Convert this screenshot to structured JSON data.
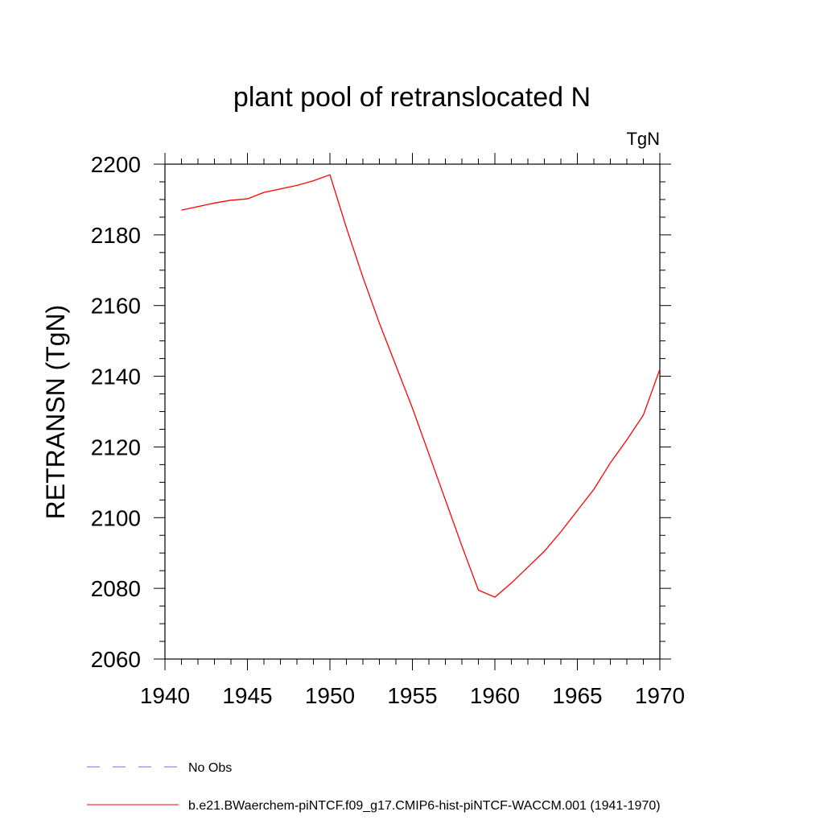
{
  "chart_data": {
    "type": "line",
    "title": "plant pool of retranslocated N",
    "units_label": "TgN",
    "xlabel": "",
    "ylabel": "RETRANSN  (TgN)",
    "xlim": [
      1940,
      1970
    ],
    "ylim": [
      2060,
      2200
    ],
    "x_ticks": [
      1940,
      1945,
      1950,
      1955,
      1960,
      1965,
      1970
    ],
    "y_ticks": [
      2060,
      2080,
      2100,
      2120,
      2140,
      2160,
      2180,
      2200
    ],
    "grid": false,
    "legend_position": "bottom-left",
    "series": [
      {
        "name": "b.e21.BWaerchem-piNTCF.f09_g17.CMIP6-hist-piNTCF-WACCM.001 (1941-1970)",
        "color": "#ff0000",
        "style": "solid",
        "x": [
          1941,
          1942,
          1943,
          1944,
          1945,
          1946,
          1947,
          1948,
          1949,
          1950,
          1951,
          1952,
          1953,
          1954,
          1955,
          1956,
          1957,
          1958,
          1959,
          1960,
          1961,
          1962,
          1963,
          1964,
          1965,
          1966,
          1967,
          1968,
          1969,
          1970
        ],
        "y": [
          2187,
          2188,
          2189,
          2189.8,
          2190.2,
          2192,
          2193,
          2194,
          2195.3,
          2197,
          2182,
          2168,
          2155,
          2143,
          2131,
          2118,
          2105,
          2092,
          2079.5,
          2077.5,
          2081.5,
          2086,
          2090.5,
          2096,
          2102,
          2108,
          2115.5,
          2122,
          2129,
          2142
        ]
      }
    ],
    "legend": [
      {
        "label": "No Obs",
        "color": "#7b68ee",
        "style": "dashed"
      },
      {
        "label": "b.e21.BWaerchem-piNTCF.f09_g17.CMIP6-hist-piNTCF-WACCM.001 (1941-1970)",
        "color": "#ff0000",
        "style": "solid"
      }
    ]
  }
}
